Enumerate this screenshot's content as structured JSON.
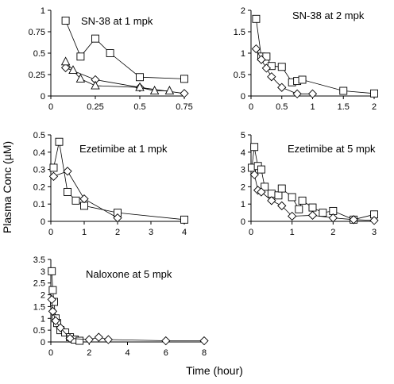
{
  "figure": {
    "ylabel": "Plasma Conc (µM)",
    "xlabel": "Time (hour)"
  },
  "chart_data": [
    {
      "type": "scatter",
      "title": "SN-38 at 1 mpk",
      "xlim": [
        0,
        0.75
      ],
      "ylim": [
        0,
        1
      ],
      "xticks": [
        "0",
        "0.25",
        "0.5",
        "0.75"
      ],
      "yticks": [
        "0",
        "0.25",
        "0.5",
        "0.75",
        "1"
      ],
      "series": [
        {
          "marker": "square",
          "x": [
            0.083,
            0.167,
            0.25,
            0.333,
            0.5,
            0.75
          ],
          "y": [
            0.88,
            0.46,
            0.67,
            0.5,
            0.22,
            0.2
          ]
        },
        {
          "marker": "diamond",
          "x": [
            0.083,
            0.25,
            0.5,
            0.75
          ],
          "y": [
            0.33,
            0.19,
            0.1,
            0.03
          ]
        },
        {
          "marker": "triangle",
          "x": [
            0.083,
            0.125,
            0.167,
            0.25,
            0.5,
            0.583,
            0.667
          ],
          "y": [
            0.4,
            0.3,
            0.2,
            0.12,
            0.1,
            0.06,
            0.06
          ]
        }
      ]
    },
    {
      "type": "scatter",
      "title": "SN-38 at 2 mpk",
      "xlim": [
        0,
        2
      ],
      "ylim": [
        0,
        2
      ],
      "xticks": [
        "0",
        "0.5",
        "1",
        "1.5",
        "2"
      ],
      "yticks": [
        "0",
        "0.5",
        "1",
        "1.5",
        "2"
      ],
      "series": [
        {
          "marker": "square",
          "x": [
            0.083,
            0.167,
            0.25,
            0.333,
            0.5,
            0.667,
            0.75,
            0.833,
            1.5,
            2.0
          ],
          "y": [
            1.8,
            0.92,
            0.92,
            0.7,
            0.68,
            0.32,
            0.35,
            0.38,
            0.12,
            0.06
          ]
        },
        {
          "marker": "diamond",
          "x": [
            0.083,
            0.167,
            0.25,
            0.333,
            0.5,
            0.75,
            1.0
          ],
          "y": [
            1.1,
            0.85,
            0.65,
            0.45,
            0.2,
            0.05,
            0.05
          ]
        }
      ]
    },
    {
      "type": "scatter",
      "title": "Ezetimibe at 1 mpk",
      "xlim": [
        0,
        4
      ],
      "ylim": [
        0,
        0.5
      ],
      "xticks": [
        "0",
        "1",
        "2",
        "3",
        "4"
      ],
      "yticks": [
        "0",
        "0.1",
        "0.2",
        "0.3",
        "0.4",
        "0.5"
      ],
      "series": [
        {
          "marker": "square",
          "x": [
            0.083,
            0.25,
            0.5,
            0.75,
            1.0,
            2.0,
            4.0
          ],
          "y": [
            0.31,
            0.46,
            0.17,
            0.12,
            0.09,
            0.05,
            0.01
          ]
        },
        {
          "marker": "diamond",
          "x": [
            0.083,
            0.5,
            1.0,
            2.0
          ],
          "y": [
            0.26,
            0.29,
            0.13,
            0.02
          ]
        }
      ]
    },
    {
      "type": "scatter",
      "title": "Ezetimibe at 5 mpk",
      "xlim": [
        0,
        3
      ],
      "ylim": [
        0,
        5
      ],
      "xticks": [
        "0",
        "1",
        "2",
        "3"
      ],
      "yticks": [
        "0",
        "1",
        "2",
        "3",
        "4",
        "5"
      ],
      "series": [
        {
          "marker": "square",
          "x": [
            0.02,
            0.08,
            0.167,
            0.25,
            0.333,
            0.5,
            0.667,
            0.75,
            1.0,
            1.167,
            1.25,
            1.5,
            1.75,
            2.0,
            2.5,
            3.0
          ],
          "y": [
            3.1,
            4.3,
            3.2,
            3.0,
            2.0,
            1.6,
            1.5,
            1.9,
            1.4,
            0.7,
            1.2,
            0.8,
            0.5,
            0.6,
            0.1,
            0.4
          ]
        },
        {
          "marker": "diamond",
          "x": [
            0.083,
            0.167,
            0.25,
            0.5,
            0.75,
            1.0,
            1.5,
            2.0,
            2.5,
            3.0
          ],
          "y": [
            2.7,
            1.8,
            1.7,
            1.2,
            0.9,
            0.3,
            0.35,
            0.2,
            0.1,
            0.05
          ]
        }
      ]
    },
    {
      "type": "scatter",
      "title": "Naloxone at 5 mpk",
      "xlim": [
        0,
        8
      ],
      "ylim": [
        0,
        3.5
      ],
      "xticks": [
        "0",
        "2",
        "4",
        "6",
        "8"
      ],
      "yticks": [
        "0",
        "0.5",
        "1",
        "1.5",
        "2",
        "2.5",
        "3",
        "3.5"
      ],
      "series": [
        {
          "marker": "square",
          "x": [
            0.05,
            0.1,
            0.167,
            0.25,
            0.333,
            0.5,
            0.75,
            1.0,
            1.25,
            1.5
          ],
          "y": [
            3.0,
            2.2,
            1.7,
            1.0,
            0.8,
            0.5,
            0.4,
            0.2,
            0.1,
            0.05
          ]
        },
        {
          "marker": "diamond",
          "x": [
            0.05,
            0.1,
            0.25,
            0.5,
            1.0,
            2.0,
            2.5,
            3.0,
            6.0,
            8.0
          ],
          "y": [
            1.8,
            1.3,
            0.9,
            0.6,
            0.15,
            0.1,
            0.2,
            0.1,
            0.05,
            0.05
          ]
        }
      ]
    }
  ]
}
